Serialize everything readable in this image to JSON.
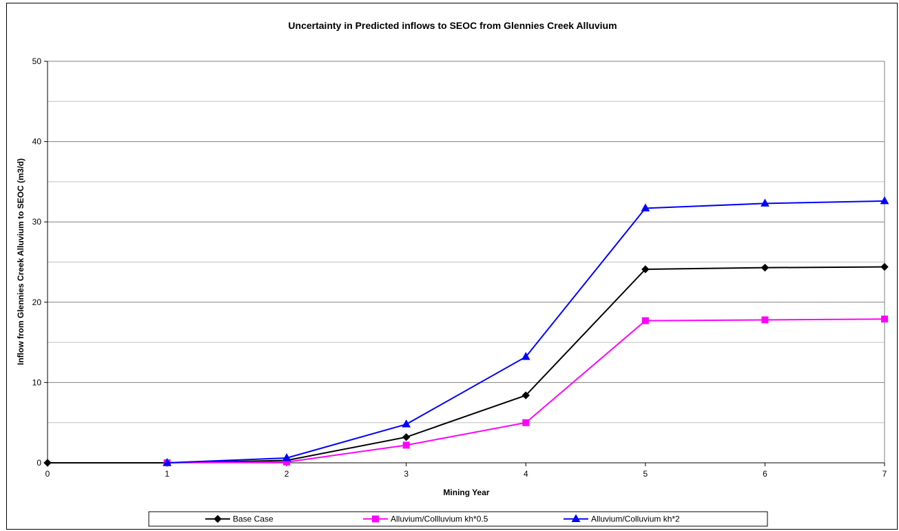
{
  "chart_data": {
    "type": "line",
    "title": "Uncertainty in Predicted inflows to SEOC from Glennies Creek Alluvium",
    "xlabel": "Mining Year",
    "ylabel": "Inflow from Glennies Creek Alluvium to SEOC (m3/d)",
    "xlim": [
      0,
      7
    ],
    "ylim": [
      0,
      50
    ],
    "x_ticks": [
      "0",
      "1",
      "2",
      "3",
      "4",
      "5",
      "6",
      "7"
    ],
    "y_ticks": [
      "0",
      "10",
      "20",
      "30",
      "40",
      "50"
    ],
    "grid": "horizontal",
    "legend_position": "bottom",
    "series": [
      {
        "name": "Base Case",
        "color": "#000000",
        "marker": "diamond",
        "x": [
          0,
          1,
          2,
          3,
          4,
          5,
          6,
          7
        ],
        "values": [
          0,
          0,
          0.3,
          3.2,
          8.4,
          24.1,
          24.3,
          24.4
        ]
      },
      {
        "name": "Alluvium/Collluvium kh*0.5",
        "color": "#ff00ff",
        "marker": "square",
        "x": [
          1,
          2,
          3,
          4,
          5,
          6,
          7
        ],
        "values": [
          0,
          0.1,
          2.2,
          5.0,
          17.7,
          17.8,
          17.9
        ]
      },
      {
        "name": "Alluvium/Colluvium kh*2",
        "color": "#0000ff",
        "marker": "triangle",
        "x": [
          1,
          2,
          3,
          4,
          5,
          6,
          7
        ],
        "values": [
          0,
          0.6,
          4.8,
          13.2,
          31.7,
          32.3,
          32.6
        ]
      }
    ]
  }
}
